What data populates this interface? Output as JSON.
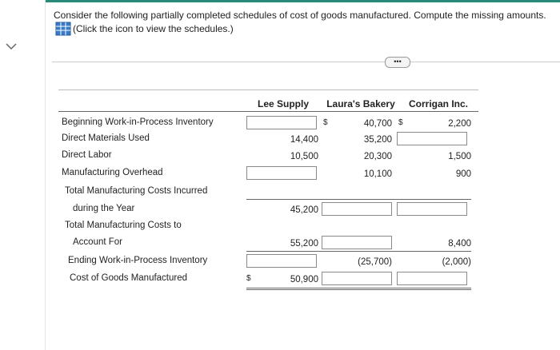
{
  "instruction": "Consider the following partially completed schedules of cost of goods manufactured. Compute the missing amounts.",
  "link": "(Click the icon to view the schedules.)",
  "table": {
    "columns": [
      "Lee Supply",
      "Laura's Bakery",
      "Corrigan Inc."
    ],
    "rows": [
      {
        "label": "Beginning Work-in-Process Inventory",
        "cells": [
          null,
          "40,700",
          "2,200"
        ],
        "dollar": [
          null,
          "$",
          "$"
        ]
      },
      {
        "label": "Direct Materials Used",
        "cells": [
          "14,400",
          "35,200",
          null
        ]
      },
      {
        "label": "Direct Labor",
        "cells": [
          "10,500",
          "20,300",
          "1,500"
        ]
      },
      {
        "label": "Manufacturing Overhead",
        "cells": [
          null,
          "10,100",
          "900"
        ]
      },
      {
        "label": "Total Manufacturing Costs Incurred"
      },
      {
        "label": "during the Year",
        "cells": [
          "45,200",
          null,
          null
        ]
      },
      {
        "label": "Total Manufacturing Costs to"
      },
      {
        "label": "Account For",
        "cells": [
          "55,200",
          null,
          "8,400"
        ]
      },
      {
        "label": "Ending Work-in-Process Inventory",
        "cells": [
          null,
          "(25,700)",
          "(2,000)"
        ]
      },
      {
        "label": "Cost of Goods Manufactured",
        "cells": [
          "50,900",
          null,
          null
        ],
        "dollar": [
          "$",
          null,
          null
        ]
      }
    ]
  }
}
